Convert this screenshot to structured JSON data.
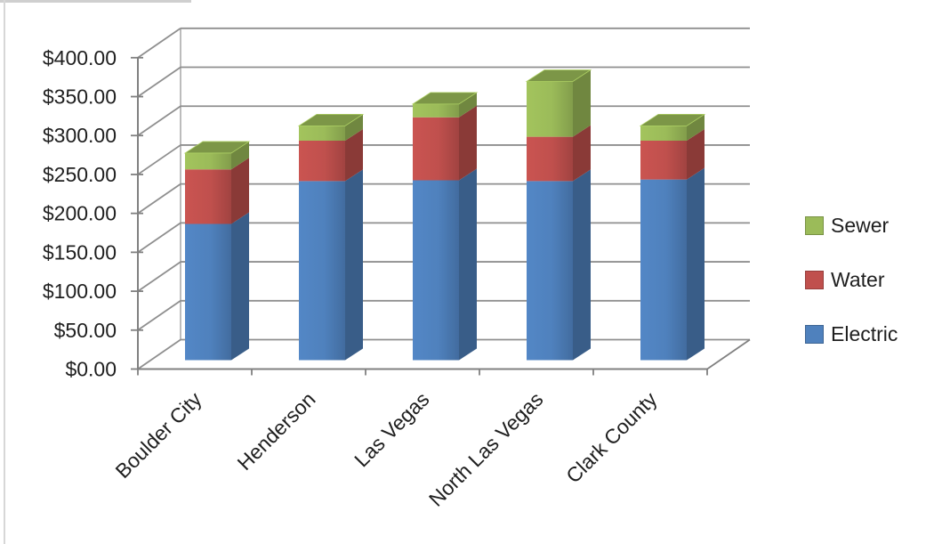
{
  "page": {
    "background": "#ffffff",
    "edge_color": "#d7d7d7"
  },
  "chart_data": {
    "type": "bar",
    "subtype": "3d-stacked-column",
    "title": "",
    "categories": [
      "Boulder City",
      "Henderson",
      "Las Vegas",
      "North Las Vegas",
      "Clark County"
    ],
    "series": [
      {
        "name": "Electric",
        "color": "#4F81BD",
        "values": [
          175,
          230,
          231,
          230,
          232
        ]
      },
      {
        "name": "Water",
        "color": "#C0504D",
        "values": [
          70,
          52,
          81,
          57,
          50
        ]
      },
      {
        "name": "Sewer",
        "color": "#9BBB59",
        "values": [
          21,
          19,
          17,
          71,
          19
        ]
      }
    ],
    "ylabel": "",
    "xlabel": "",
    "ylim": [
      0,
      400
    ],
    "ytick_step": 50,
    "ytick_labels": [
      "$0.00",
      "$50.00",
      "$100.00",
      "$150.00",
      "$200.00",
      "$250.00",
      "$300.00",
      "$350.00",
      "$400.00"
    ],
    "grid": true,
    "gridline_color": "#8f8f8f",
    "axis_color": "#808080",
    "text_color": "#1f1f1f",
    "legend": {
      "position": "right",
      "items": [
        "Sewer",
        "Water",
        "Electric"
      ]
    }
  }
}
